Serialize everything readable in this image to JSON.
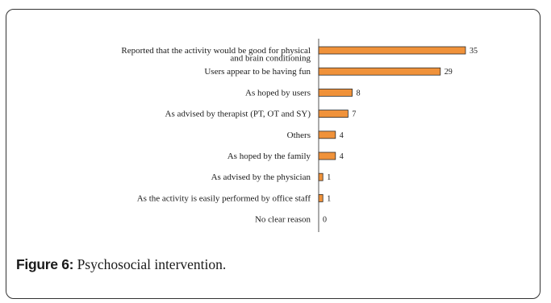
{
  "figure": {
    "label": "Figure 6:",
    "caption": "Psychosocial intervention."
  },
  "chart_data": {
    "type": "bar",
    "orientation": "horizontal",
    "categories": [
      "Reported that the activity would be good for physical and brain conditioning",
      "Users appear to be having fun",
      "As hoped by users",
      "As advised by therapist (PT, OT and SY)",
      "Others",
      "As hoped by the family",
      "As advised by the physician",
      "As the activity is easily performed by office staff",
      "No clear reason"
    ],
    "category_lines": [
      [
        "Reported that the activity would be good for physical",
        "and brain conditioning"
      ],
      [
        "Users appear to be having fun"
      ],
      [
        "As hoped by users"
      ],
      [
        "As advised by therapist (PT, OT and SY)"
      ],
      [
        "Others"
      ],
      [
        "As hoped by the family"
      ],
      [
        "As advised by the physician"
      ],
      [
        "As the activity is easily performed by office staff"
      ],
      [
        "No clear reason"
      ]
    ],
    "values": [
      35,
      29,
      8,
      7,
      4,
      4,
      1,
      1,
      0
    ],
    "xlim": [
      0,
      35
    ],
    "grid": false,
    "legend": false,
    "bar_color": "#f0923a",
    "bar_edge_color": "#2b2b2b",
    "axis_color": "#555555"
  }
}
